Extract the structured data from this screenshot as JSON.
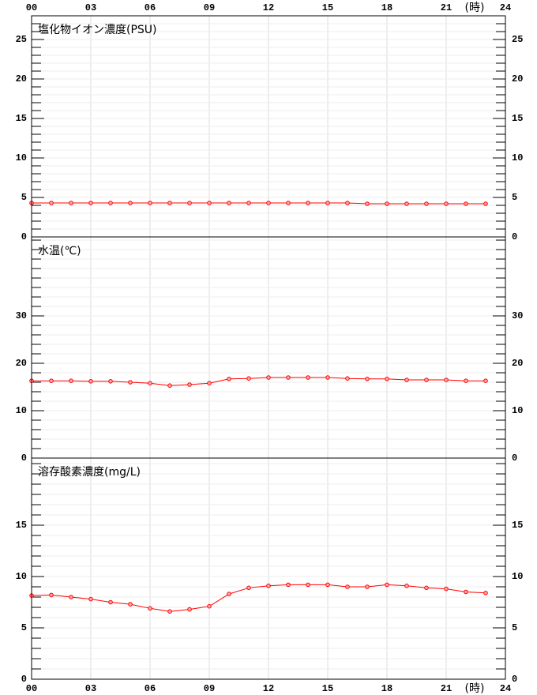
{
  "x_axis": {
    "xlim": [
      0,
      24
    ],
    "unit": "(時)",
    "xticks": [
      {
        "value": 0,
        "label": "00"
      },
      {
        "value": 3,
        "label": "03"
      },
      {
        "value": 6,
        "label": "06"
      },
      {
        "value": 9,
        "label": "09"
      },
      12,
      15,
      18,
      21,
      24
    ]
  },
  "chart_data": [
    {
      "type": "line",
      "title": "塩化物イオン濃度(PSU)",
      "ylim": [
        0,
        28
      ],
      "yticks": [
        0,
        5,
        10,
        15,
        20,
        25
      ],
      "grid_step": 1,
      "x": [
        0,
        1,
        2,
        3,
        4,
        5,
        6,
        7,
        8,
        9,
        10,
        11,
        12,
        13,
        14,
        15,
        16,
        17,
        18,
        19,
        20,
        21,
        22,
        23
      ],
      "series": [
        {
          "color": "#ff0000",
          "values": [
            4.3,
            4.3,
            4.3,
            4.3,
            4.3,
            4.3,
            4.3,
            4.3,
            4.3,
            4.3,
            4.3,
            4.3,
            4.3,
            4.3,
            4.3,
            4.3,
            4.3,
            4.2,
            4.2,
            4.2,
            4.2,
            4.2,
            4.2,
            4.2
          ]
        }
      ]
    },
    {
      "type": "line",
      "title": "水温(℃)",
      "ylim": [
        0,
        46.67
      ],
      "yticks": [
        0,
        10,
        20,
        30
      ],
      "grid_step": 2,
      "x": [
        0,
        1,
        2,
        3,
        4,
        5,
        6,
        7,
        8,
        9,
        10,
        11,
        12,
        13,
        14,
        15,
        16,
        17,
        18,
        19,
        20,
        21,
        22,
        23
      ],
      "series": [
        {
          "color": "#ff0000",
          "values": [
            16.3,
            16.3,
            16.3,
            16.2,
            16.2,
            16.0,
            15.8,
            15.3,
            15.5,
            15.8,
            16.7,
            16.8,
            17.0,
            17.0,
            17.0,
            17.0,
            16.8,
            16.7,
            16.7,
            16.5,
            16.5,
            16.5,
            16.3,
            16.3
          ]
        }
      ]
    },
    {
      "type": "line",
      "title": "溶存酸素濃度(mg/L)",
      "ylim": [
        0,
        21.54
      ],
      "yticks": [
        0,
        5,
        10,
        15
      ],
      "grid_step": 1,
      "x": [
        0,
        1,
        2,
        3,
        4,
        5,
        6,
        7,
        8,
        9,
        10,
        11,
        12,
        13,
        14,
        15,
        16,
        17,
        18,
        19,
        20,
        21,
        22,
        23
      ],
      "series": [
        {
          "color": "#ff0000",
          "values": [
            8.15,
            8.2,
            8.0,
            7.8,
            7.5,
            7.3,
            6.9,
            6.6,
            6.8,
            7.1,
            8.3,
            8.9,
            9.1,
            9.2,
            9.2,
            9.2,
            9.0,
            9.0,
            9.2,
            9.1,
            8.9,
            8.8,
            8.5,
            8.4
          ]
        }
      ]
    }
  ]
}
